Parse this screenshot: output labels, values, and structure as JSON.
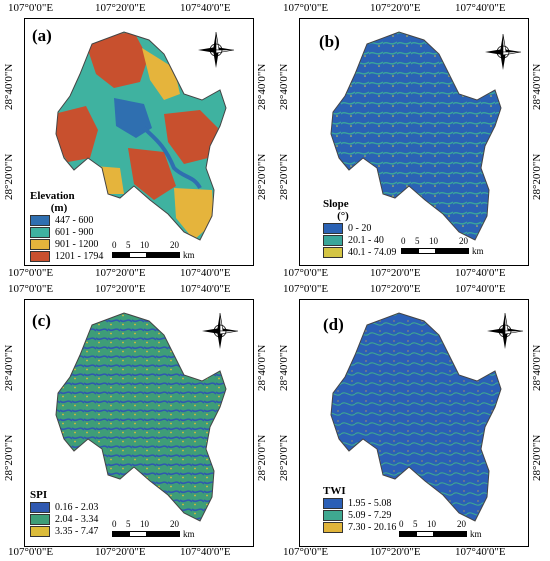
{
  "coords": {
    "lon": [
      "107°0'0\"E",
      "107°20'0\"E",
      "107°40'0\"E"
    ],
    "lat": [
      "28°40'0\"N",
      "28°20'0\"N"
    ]
  },
  "scale": {
    "ticks": [
      "0",
      "5",
      "10",
      "20"
    ],
    "unit": "km"
  },
  "compass": {
    "n": "N",
    "s": "S",
    "e": "E",
    "w": "W"
  },
  "panels": [
    {
      "label": "(a)",
      "legend_title": "Elevation",
      "legend_unit": "(m)",
      "classes": [
        {
          "range": "447 - 600",
          "color": "#2f6fb0"
        },
        {
          "range": "601 - 900",
          "color": "#3fb2a0"
        },
        {
          "range": "901 - 1200",
          "color": "#e5b43c"
        },
        {
          "range": "1201 - 1794",
          "color": "#c8502e"
        }
      ]
    },
    {
      "label": "(b)",
      "legend_title": "Slope",
      "legend_unit": "(°)",
      "classes": [
        {
          "range": "0 - 20",
          "color": "#2b62b4"
        },
        {
          "range": "20.1 - 40",
          "color": "#3aa69a"
        },
        {
          "range": "40.1 - 74.09",
          "color": "#d4c544"
        }
      ]
    },
    {
      "label": "(c)",
      "legend_title": "SPI",
      "legend_unit": "",
      "classes": [
        {
          "range": "0.16 - 2.03",
          "color": "#2f58b0"
        },
        {
          "range": "2.04 - 3.34",
          "color": "#3e9d78"
        },
        {
          "range": "3.35 - 7.47",
          "color": "#dcbc3a"
        }
      ]
    },
    {
      "label": "(d)",
      "legend_title": "TWI",
      "legend_unit": "",
      "classes": [
        {
          "range": "1.95 - 5.08",
          "color": "#2b5fb6"
        },
        {
          "range": "5.09 - 7.29",
          "color": "#3fa890"
        },
        {
          "range": "7.30 - 20.16",
          "color": "#e0b43a"
        }
      ]
    }
  ]
}
